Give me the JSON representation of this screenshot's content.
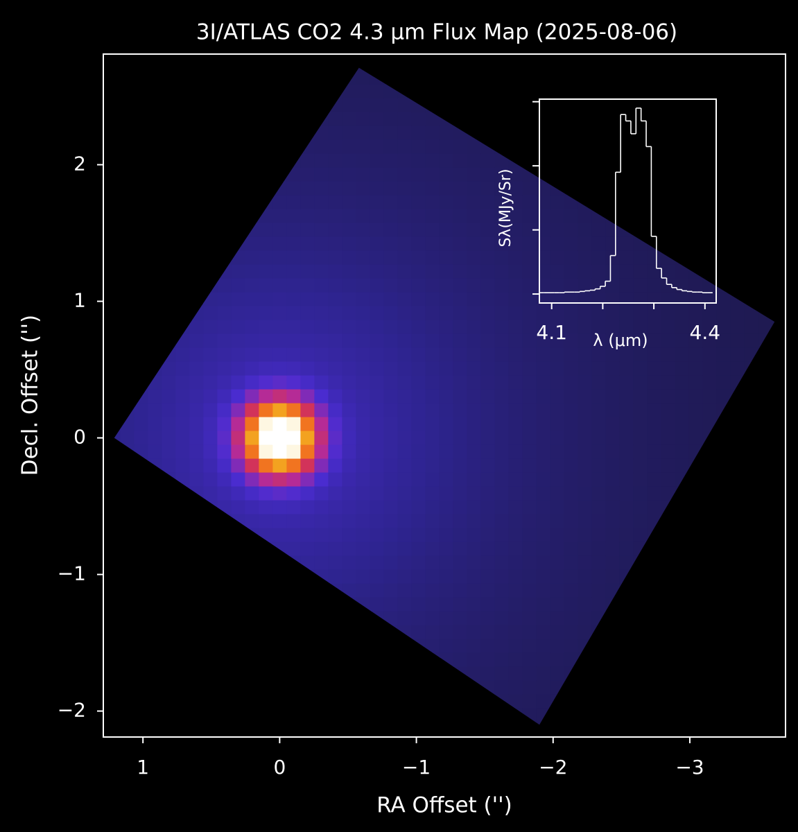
{
  "chart_data": [
    {
      "type": "heatmap",
      "title": "3I/ATLAS CO2 4.3 μm Flux Map (2025-08-06)",
      "x_label": "RA Offset ('')",
      "y_label": "Decl. Offset ('')",
      "xlim": [
        1.29,
        -3.7
      ],
      "ylim": [
        -2.19,
        2.81
      ],
      "xticks": [
        1,
        0,
        {
          "value": -1,
          "label": "−1"
        },
        {
          "value": -2,
          "label": "−2"
        },
        {
          "value": -3,
          "label": "−3"
        }
      ],
      "yticks": [
        {
          "value": -2,
          "label": "−2"
        },
        {
          "value": -1,
          "label": "−1"
        },
        0,
        1,
        2
      ],
      "footprint": {
        "x": [
          1.21,
          -0.58,
          -3.62,
          -1.9
        ],
        "y": [
          0,
          2.71,
          0.85,
          -2.1
        ]
      },
      "source": {
        "x": 0,
        "y": 0
      }
    },
    {
      "type": "step",
      "x_label": "λ (μm)",
      "y_label": "Sλ(MJy/Sr)",
      "xlim": [
        4.076,
        4.422
      ],
      "ylim": [
        -0.14,
        3.04
      ],
      "xticks": [
        4.1,
        {
          "value": 4.2,
          "label": null
        },
        {
          "value": 4.3,
          "label": null
        },
        4.4
      ],
      "yticks": [
        {
          "value": 0,
          "label": null
        },
        {
          "value": 1,
          "label": null
        },
        {
          "value": 2,
          "label": null
        },
        {
          "value": 3,
          "label": null
        }
      ],
      "color": "#ffffff",
      "x": [
        4.08,
        4.09,
        4.1,
        4.11,
        4.12,
        4.13,
        4.14,
        4.15,
        4.16,
        4.17,
        4.18,
        4.19,
        4.2,
        4.21,
        4.22,
        4.23,
        4.24,
        4.25,
        4.26,
        4.27,
        4.28,
        4.29,
        4.3,
        4.31,
        4.32,
        4.33,
        4.34,
        4.35,
        4.36,
        4.37,
        4.38,
        4.39,
        4.4,
        4.41
      ],
      "values": [
        0.02,
        0.02,
        0.02,
        0.02,
        0.02,
        0.03,
        0.03,
        0.03,
        0.04,
        0.05,
        0.06,
        0.08,
        0.12,
        0.2,
        0.6,
        1.9,
        2.8,
        2.7,
        2.5,
        2.9,
        2.7,
        2.3,
        0.9,
        0.4,
        0.25,
        0.15,
        0.1,
        0.07,
        0.05,
        0.04,
        0.03,
        0.03,
        0.02,
        0.02
      ]
    }
  ]
}
